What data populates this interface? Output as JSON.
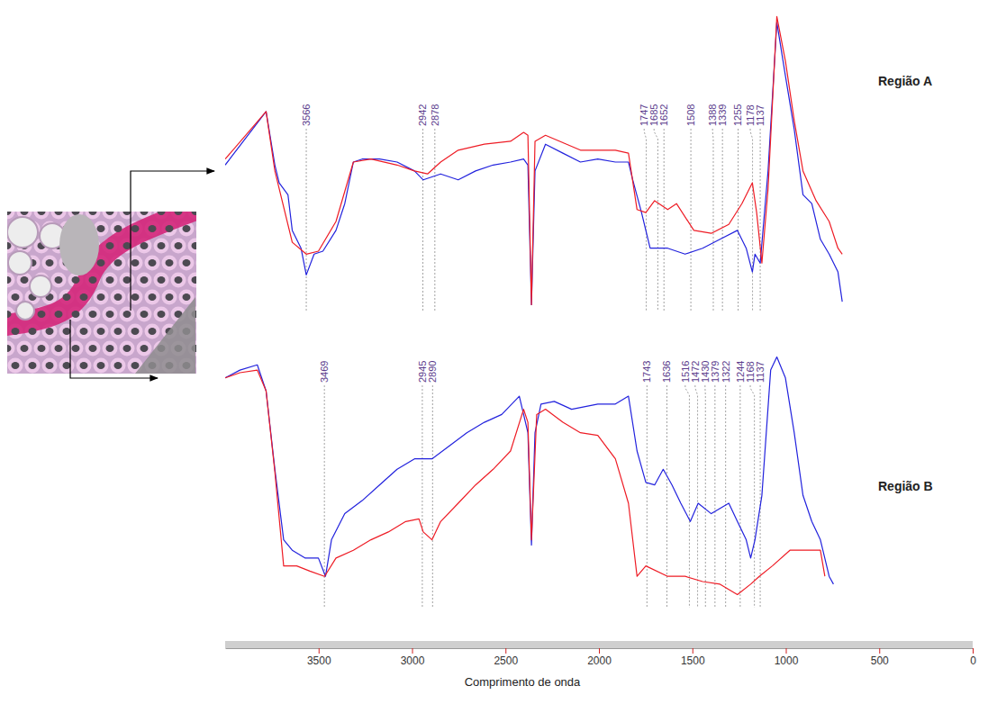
{
  "chart_data": [
    {
      "type": "line",
      "title": "Região A",
      "xlim": [
        4000,
        0
      ],
      "ylim": [
        0,
        100
      ],
      "tick_labels": false,
      "annotations": [
        3566,
        2942,
        2878,
        1747,
        1685,
        1652,
        1508,
        1388,
        1339,
        1255,
        1178,
        1137
      ],
      "series": [
        {
          "color": "#2222dd",
          "x": [
            4000,
            3781,
            3734,
            3711,
            3664,
            3641,
            3594,
            3566,
            3524,
            3477,
            3407,
            3360,
            3314,
            3267,
            3174,
            3080,
            2987,
            2940,
            2847,
            2753,
            2660,
            2566,
            2473,
            2403,
            2380,
            2361,
            2342,
            2286,
            2193,
            2099,
            2006,
            1912,
            1842,
            1819,
            1772,
            1726,
            1632,
            1539,
            1445,
            1352,
            1259,
            1212,
            1179,
            1165,
            1137,
            1095,
            1048,
            1002,
            955,
            908,
            861,
            815,
            768,
            721,
            698
          ],
          "values": [
            49,
            67,
            49,
            43,
            39,
            27,
            21,
            12,
            19,
            20,
            27,
            36,
            50,
            51,
            51,
            50,
            47,
            44,
            46,
            44,
            47,
            49,
            50,
            51,
            49,
            2,
            47,
            56,
            53,
            50,
            51,
            50,
            50,
            44,
            33,
            21,
            21,
            19,
            21,
            24,
            27,
            21,
            13,
            19,
            16,
            47,
            97,
            79,
            61,
            39,
            36,
            24,
            19,
            13,
            3
          ]
        },
        {
          "color": "#ee1c25",
          "x": [
            4000,
            3781,
            3734,
            3641,
            3566,
            3501,
            3407,
            3314,
            3220,
            3080,
            2987,
            2917,
            2847,
            2753,
            2613,
            2473,
            2403,
            2380,
            2361,
            2342,
            2286,
            2099,
            1912,
            1842,
            1796,
            1749,
            1702,
            1632,
            1585,
            1492,
            1399,
            1305,
            1235,
            1179,
            1156,
            1128,
            1095,
            1048,
            1002,
            955,
            908,
            838,
            768,
            721,
            698
          ],
          "values": [
            51,
            67,
            47,
            23,
            19,
            20,
            30,
            50,
            51,
            49,
            47,
            46,
            50,
            54,
            56,
            57,
            60,
            59,
            2,
            57,
            59,
            54,
            54,
            53,
            34,
            33,
            37,
            34,
            36,
            27,
            26,
            29,
            36,
            43,
            33,
            16,
            41,
            99,
            84,
            64,
            47,
            37,
            30,
            21,
            19
          ]
        }
      ]
    },
    {
      "type": "line",
      "title": "Região B",
      "x_label": "Comprimento de onda",
      "xlim": [
        4000,
        0
      ],
      "ylim": [
        0,
        100
      ],
      "xticks": [
        3500,
        3000,
        2500,
        2000,
        1500,
        1000,
        500,
        0
      ],
      "tick_labels": "x",
      "annotations": [
        3469,
        2945,
        2890,
        1743,
        1636,
        1516,
        1472,
        1430,
        1379,
        1322,
        1244,
        1168,
        1137
      ],
      "series": [
        {
          "color": "#2222dd",
          "x": [
            4000,
            3921,
            3828,
            3781,
            3734,
            3687,
            3641,
            3571,
            3501,
            3463,
            3431,
            3360,
            3267,
            3174,
            3080,
            2987,
            2893,
            2800,
            2707,
            2613,
            2520,
            2426,
            2380,
            2361,
            2342,
            2310,
            2239,
            2146,
            2006,
            1912,
            1842,
            1796,
            1749,
            1702,
            1656,
            1609,
            1562,
            1511,
            1469,
            1399,
            1305,
            1259,
            1212,
            1188,
            1165,
            1128,
            1081,
            1048,
            1002,
            955,
            908,
            861,
            815,
            768,
            745
          ],
          "values": [
            88,
            91,
            93,
            83,
            53,
            26,
            22,
            19,
            19,
            12,
            26,
            36,
            41,
            47,
            53,
            57,
            57,
            62,
            67,
            71,
            74,
            81,
            67,
            24,
            67,
            78,
            79,
            76,
            78,
            78,
            81,
            60,
            48,
            47,
            53,
            47,
            40,
            33,
            40,
            36,
            40,
            33,
            26,
            19,
            26,
            43,
            91,
            96,
            88,
            67,
            43,
            33,
            26,
            12,
            9
          ]
        },
        {
          "color": "#ee1c25",
          "x": [
            4000,
            3921,
            3828,
            3781,
            3734,
            3687,
            3617,
            3547,
            3468,
            3407,
            3314,
            3220,
            3127,
            3034,
            2963,
            2940,
            2893,
            2847,
            2753,
            2660,
            2566,
            2473,
            2403,
            2380,
            2361,
            2333,
            2286,
            2193,
            2099,
            2006,
            1912,
            1842,
            1796,
            1749,
            1632,
            1539,
            1445,
            1352,
            1259,
            1188,
            1142,
            1072,
            978,
            885,
            815,
            791
          ],
          "values": [
            88,
            90,
            91,
            83,
            52,
            16,
            16,
            14,
            12,
            19,
            22,
            26,
            29,
            33,
            34,
            29,
            26,
            33,
            40,
            47,
            53,
            60,
            76,
            71,
            26,
            74,
            76,
            71,
            67,
            66,
            57,
            40,
            12,
            16,
            12,
            12,
            10,
            9,
            5,
            9,
            12,
            16,
            22,
            22,
            22,
            12
          ]
        }
      ]
    }
  ]
}
